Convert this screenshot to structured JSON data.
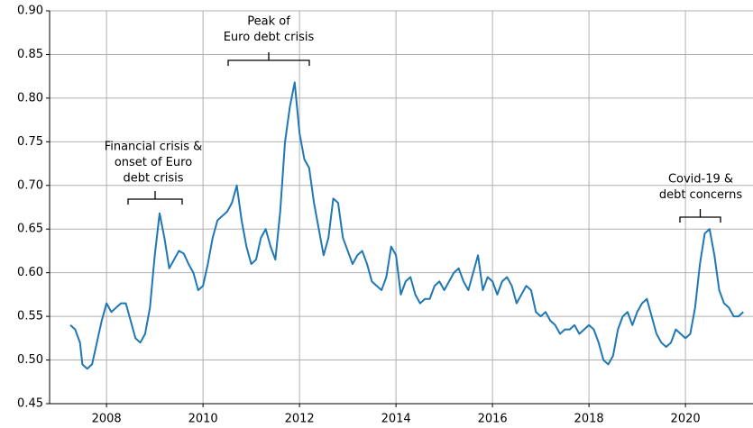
{
  "chart_data": {
    "type": "line",
    "annotations": [
      {
        "lines": [
          "Peak of",
          "Euro debt crisis"
        ]
      },
      {
        "lines": [
          "Financial crisis &",
          "onset of Euro",
          "debt crisis"
        ]
      },
      {
        "lines": [
          "Covid-19 &",
          "debt concerns"
        ]
      }
    ],
    "color": "#1f77b4",
    "grid": true,
    "xlim": [
      2006.82,
      2021.4
    ],
    "xticks": [
      2008,
      2010,
      2012,
      2014,
      2016,
      2018,
      2020
    ],
    "ylim": [
      0.45,
      0.9
    ],
    "yticks": [
      {
        "value": 0.45,
        "label": "0.45"
      },
      {
        "value": 0.5,
        "label": "0.50"
      },
      {
        "value": 0.55,
        "label": "0.55"
      },
      {
        "value": 0.6,
        "label": "0.60"
      },
      {
        "value": 0.65,
        "label": "0.65"
      },
      {
        "value": 0.7,
        "label": "0.70"
      },
      {
        "value": 0.75,
        "label": "0.75"
      },
      {
        "value": 0.8,
        "label": "0.80"
      },
      {
        "value": 0.85,
        "label": "0.85"
      },
      {
        "value": 0.9,
        "label": "0.90"
      }
    ],
    "x": [
      2007.25,
      2007.35,
      2007.45,
      2007.5,
      2007.6,
      2007.7,
      2007.8,
      2007.9,
      2008.0,
      2008.1,
      2008.2,
      2008.3,
      2008.4,
      2008.5,
      2008.6,
      2008.7,
      2008.8,
      2008.9,
      2009.0,
      2009.1,
      2009.2,
      2009.3,
      2009.4,
      2009.5,
      2009.6,
      2009.7,
      2009.8,
      2009.9,
      2010.0,
      2010.1,
      2010.2,
      2010.3,
      2010.4,
      2010.5,
      2010.6,
      2010.7,
      2010.8,
      2010.9,
      2011.0,
      2011.1,
      2011.2,
      2011.3,
      2011.4,
      2011.5,
      2011.6,
      2011.7,
      2011.8,
      2011.9,
      2012.0,
      2012.1,
      2012.2,
      2012.3,
      2012.4,
      2012.5,
      2012.6,
      2012.7,
      2012.8,
      2012.9,
      2013.0,
      2013.1,
      2013.2,
      2013.3,
      2013.4,
      2013.5,
      2013.6,
      2013.7,
      2013.8,
      2013.9,
      2014.0,
      2014.1,
      2014.2,
      2014.3,
      2014.4,
      2014.5,
      2014.6,
      2014.7,
      2014.8,
      2014.9,
      2015.0,
      2015.1,
      2015.2,
      2015.3,
      2015.4,
      2015.5,
      2015.6,
      2015.7,
      2015.8,
      2015.9,
      2016.0,
      2016.1,
      2016.2,
      2016.3,
      2016.4,
      2016.5,
      2016.6,
      2016.7,
      2016.8,
      2016.9,
      2017.0,
      2017.1,
      2017.2,
      2017.3,
      2017.4,
      2017.5,
      2017.6,
      2017.7,
      2017.8,
      2017.9,
      2018.0,
      2018.1,
      2018.2,
      2018.3,
      2018.4,
      2018.5,
      2018.6,
      2018.7,
      2018.8,
      2018.9,
      2019.0,
      2019.1,
      2019.2,
      2019.3,
      2019.4,
      2019.5,
      2019.6,
      2019.7,
      2019.8,
      2019.9,
      2020.0,
      2020.1,
      2020.2,
      2020.3,
      2020.4,
      2020.5,
      2020.6,
      2020.7,
      2020.8,
      2020.9,
      2021.0,
      2021.1,
      2021.2
    ],
    "values": [
      0.54,
      0.535,
      0.52,
      0.495,
      0.49,
      0.495,
      0.52,
      0.545,
      0.565,
      0.555,
      0.56,
      0.565,
      0.565,
      0.545,
      0.525,
      0.52,
      0.53,
      0.56,
      0.62,
      0.668,
      0.64,
      0.605,
      0.615,
      0.625,
      0.622,
      0.61,
      0.6,
      0.58,
      0.585,
      0.61,
      0.64,
      0.66,
      0.665,
      0.67,
      0.68,
      0.7,
      0.66,
      0.63,
      0.61,
      0.615,
      0.64,
      0.65,
      0.63,
      0.615,
      0.67,
      0.75,
      0.79,
      0.818,
      0.76,
      0.73,
      0.72,
      0.68,
      0.65,
      0.62,
      0.64,
      0.685,
      0.68,
      0.64,
      0.625,
      0.61,
      0.62,
      0.625,
      0.61,
      0.59,
      0.585,
      0.58,
      0.595,
      0.63,
      0.62,
      0.575,
      0.59,
      0.595,
      0.575,
      0.565,
      0.57,
      0.57,
      0.585,
      0.59,
      0.58,
      0.59,
      0.6,
      0.605,
      0.59,
      0.58,
      0.6,
      0.62,
      0.58,
      0.595,
      0.59,
      0.575,
      0.59,
      0.595,
      0.585,
      0.565,
      0.575,
      0.585,
      0.58,
      0.555,
      0.55,
      0.555,
      0.545,
      0.54,
      0.53,
      0.535,
      0.535,
      0.54,
      0.53,
      0.535,
      0.54,
      0.535,
      0.52,
      0.5,
      0.495,
      0.505,
      0.535,
      0.55,
      0.555,
      0.54,
      0.555,
      0.565,
      0.57,
      0.55,
      0.53,
      0.52,
      0.515,
      0.52,
      0.535,
      0.53,
      0.525,
      0.53,
      0.56,
      0.61,
      0.645,
      0.65,
      0.62,
      0.58,
      0.565,
      0.56,
      0.55,
      0.55,
      0.555
    ]
  }
}
